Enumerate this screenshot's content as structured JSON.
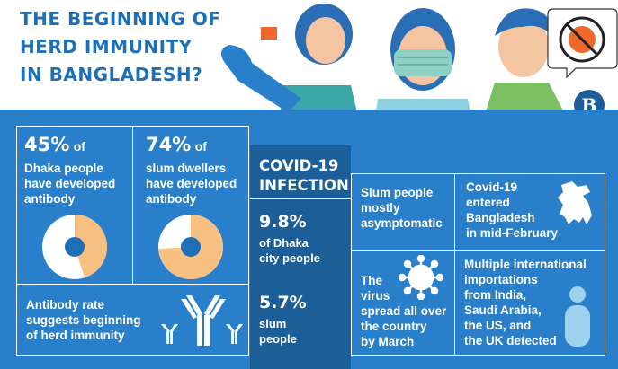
{
  "headline": [
    "THE BEGINNING OF",
    "HERD IMMUNITY",
    "IN BANGLADESH?"
  ],
  "logo_letter": "B",
  "stat_dhaka": {
    "percent": "45%",
    "of": "of",
    "lines": [
      "Dhaka people",
      "have developed",
      "antibody"
    ],
    "value": 45
  },
  "stat_slum": {
    "percent": "74%",
    "of": "of",
    "lines": [
      "slum dwellers",
      "have developed",
      "antibody"
    ],
    "value": 74
  },
  "antibody_note": [
    "Antibody rate",
    "suggests beginning",
    "of herd immunity"
  ],
  "covid_panel": {
    "title": [
      "COVID-19",
      "INFECTION"
    ],
    "dhaka_pct": "9.8%",
    "dhaka_label": [
      "of Dhaka",
      "city people"
    ],
    "slum_pct": "5.7%",
    "slum_label": [
      "slum",
      "people"
    ]
  },
  "asymptomatic_note": [
    "Slum people",
    "mostly",
    "asymptomatic"
  ],
  "entry_note": [
    "Covid-19",
    "entered",
    "Bangladesh",
    "in mid-February"
  ],
  "spread_note": [
    "The",
    "virus",
    "spread all over",
    "the country",
    "by March"
  ],
  "importation_note": [
    "Multiple international",
    "importations",
    "from India,",
    "Saudi Arabia,",
    "the US, and",
    "the UK detected"
  ],
  "colors": {
    "band": "#2a7fcb",
    "panel": "#1c5e98",
    "headline": "#1d6fb8",
    "donut_fill": "#f7bf80",
    "donut_rest": "#ffffff",
    "donut_hole": "#1d6fb8"
  }
}
